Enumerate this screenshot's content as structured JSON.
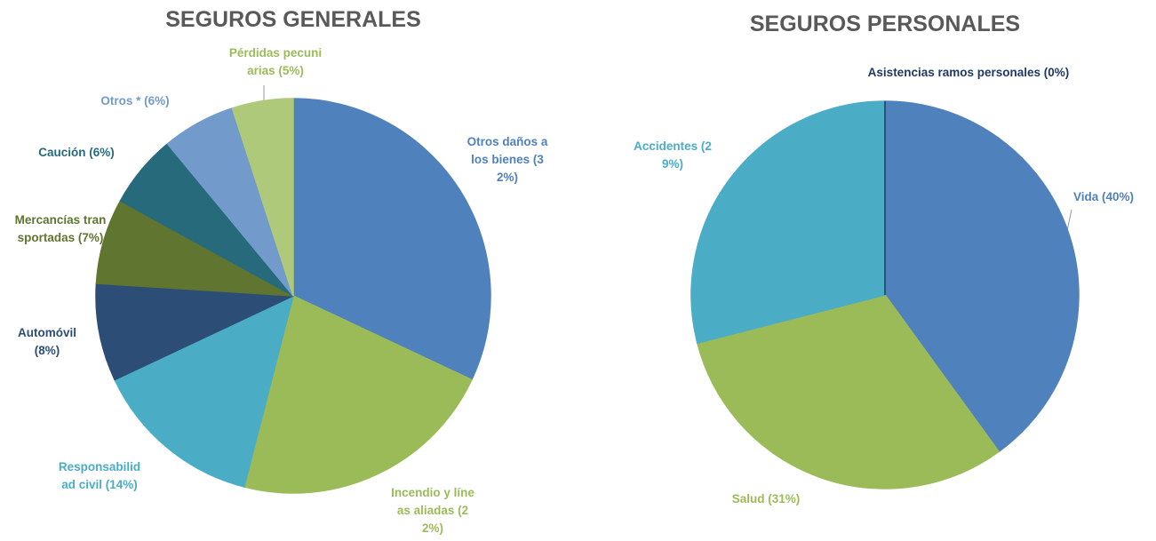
{
  "chart_data": [
    {
      "type": "pie",
      "title": "SEGUROS GENERALES",
      "categories": [
        "Otros daños a los bienes",
        "Incendio y líneas aliadas",
        "Responsabilidad civil",
        "Automóvil",
        "Mercancías transportadas",
        "Caución",
        "Otros *",
        "Pérdidas pecuniarias"
      ],
      "values": [
        32,
        22,
        14,
        8,
        7,
        6,
        6,
        5
      ],
      "value_labels": [
        "(32%)",
        "(22%)",
        "(14%)",
        "(8%)",
        "(7%)",
        "(6%)",
        "(6%)",
        "(5%)"
      ],
      "colors": [
        "#4f81bd",
        "#9bbb59",
        "#4bacc6",
        "#2c4d75",
        "#5f7530",
        "#276a7c",
        "#729aca",
        "#afc97a"
      ]
    },
    {
      "type": "pie",
      "title": "SEGUROS PERSONALES",
      "categories": [
        "Vida",
        "Salud",
        "Accidentes",
        "Asistencias ramos personales"
      ],
      "values": [
        40,
        31,
        29,
        0
      ],
      "value_labels": [
        "(40%)",
        "(31%)",
        "(29%)",
        "(0%)"
      ],
      "colors": [
        "#4f81bd",
        "#9bbb59",
        "#4bacc6",
        "#1f3864"
      ]
    }
  ]
}
